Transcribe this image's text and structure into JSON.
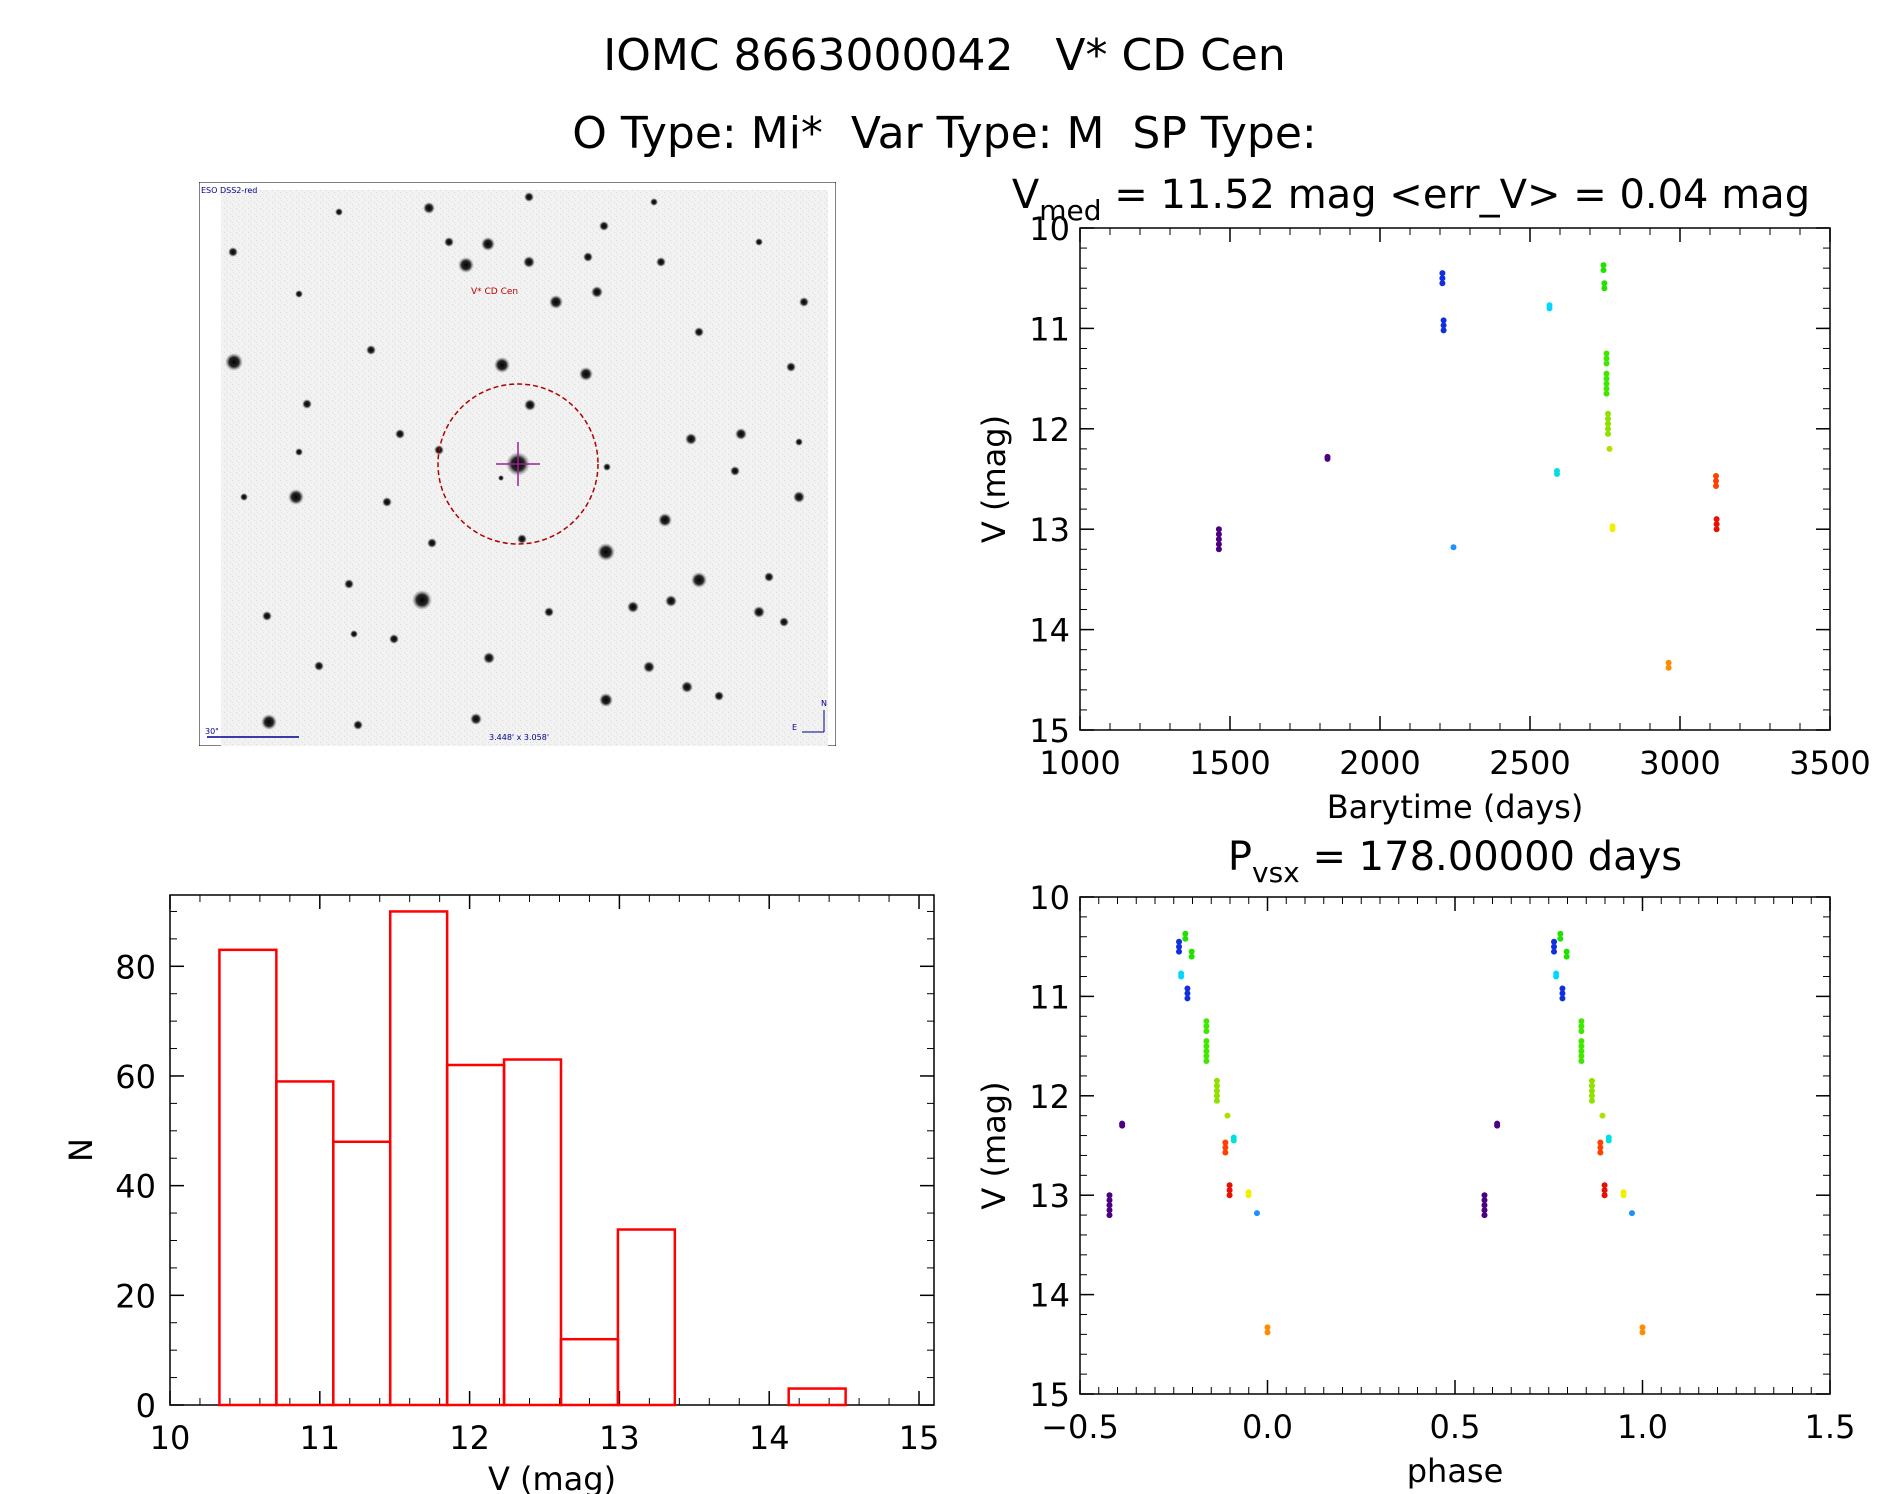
{
  "header": {
    "line1": "IOMC 8663000042   V* CD Cen",
    "line2": "O Type: Mi*  Var Type: M  SP Type:"
  },
  "finder": {
    "label_top_left": "ESO DSS2-red",
    "target_label": "V* CD Cen",
    "scale_label": "30\"",
    "fov_label": "3.448' x 3.058'",
    "compass_n": "N",
    "compass_e": "E"
  },
  "chart_data": [
    {
      "type": "scatter",
      "id": "lightcurve",
      "title_main": "V",
      "title_sub": "med",
      "title_rest": " = 11.52 mag <err_V> = 0.04 mag",
      "xlabel": "Barytime (days)",
      "ylabel": "V (mag)",
      "xlim": [
        1000,
        3500
      ],
      "ylim": [
        15,
        10
      ],
      "xticks": [
        "1000",
        "1500",
        "2000",
        "2500",
        "3000",
        "3500"
      ],
      "yticks": [
        "10",
        "11",
        "12",
        "13",
        "14",
        "15"
      ],
      "groups": [
        {
          "color": "#4b0082",
          "t": 1463,
          "v": [
            13.0,
            13.05,
            13.1,
            13.15,
            13.2
          ]
        },
        {
          "color": "#4b0082",
          "t": 1825,
          "v": [
            12.28,
            12.3
          ]
        },
        {
          "color": "#1030e0",
          "t": 2208,
          "v": [
            10.45,
            10.5,
            10.55
          ]
        },
        {
          "color": "#1030e0",
          "t": 2212,
          "v": [
            10.92,
            10.97,
            11.02
          ]
        },
        {
          "color": "#1e90ff",
          "t": 2245,
          "v": [
            13.18
          ]
        },
        {
          "color": "#00d8ff",
          "t": 2565,
          "v": [
            10.77,
            10.8
          ]
        },
        {
          "color": "#00e0e0",
          "t": 2590,
          "v": [
            12.42,
            12.45
          ]
        },
        {
          "color": "#22e000",
          "t": 2745,
          "v": [
            10.37,
            10.42
          ]
        },
        {
          "color": "#22e000",
          "t": 2748,
          "v": [
            10.55,
            10.6
          ]
        },
        {
          "color": "#40e800",
          "t": 2755,
          "v": [
            11.25,
            11.3,
            11.35,
            11.45,
            11.5,
            11.55,
            11.6,
            11.65
          ]
        },
        {
          "color": "#90e000",
          "t": 2760,
          "v": [
            11.85,
            11.9,
            11.95,
            12.0,
            12.05
          ]
        },
        {
          "color": "#b0e000",
          "t": 2765,
          "v": [
            12.2
          ]
        },
        {
          "color": "#f0f000",
          "t": 2775,
          "v": [
            12.97,
            13.0
          ]
        },
        {
          "color": "#ff8c00",
          "t": 2962,
          "v": [
            14.33,
            14.38
          ]
        },
        {
          "color": "#ff4000",
          "t": 3120,
          "v": [
            12.47,
            12.52,
            12.57
          ]
        },
        {
          "color": "#e81000",
          "t": 3122,
          "v": [
            12.9,
            12.95,
            13.0
          ]
        }
      ]
    },
    {
      "type": "bar",
      "id": "histogram",
      "xlabel": "V (mag)",
      "ylabel": "N",
      "xlim": [
        10,
        15.1
      ],
      "ylim": [
        0,
        93
      ],
      "xticks": [
        "10",
        "11",
        "12",
        "13",
        "14",
        "15"
      ],
      "yticks": [
        "0",
        "20",
        "40",
        "60",
        "80"
      ],
      "bar_color": "#ff0000",
      "bin_edges": [
        10.33,
        10.71,
        11.09,
        11.47,
        11.85,
        12.23,
        12.61,
        12.99,
        13.37,
        13.75,
        14.13,
        14.51
      ],
      "values": [
        83,
        59,
        48,
        90,
        62,
        63,
        12,
        32,
        0,
        0,
        3
      ]
    },
    {
      "type": "scatter",
      "id": "phased",
      "title_main": "P",
      "title_sub": "vsx",
      "title_rest": " = 178.00000 days",
      "xlabel": "phase",
      "ylabel": "V (mag)",
      "xlim": [
        -0.5,
        1.5
      ],
      "ylim": [
        15,
        10
      ],
      "xticks": [
        "−0.5",
        "0.0",
        "0.5",
        "1.0",
        "1.5"
      ],
      "yticks": [
        "10",
        "11",
        "12",
        "13",
        "14",
        "15"
      ],
      "period": 178.0,
      "epoch": 2962
    }
  ]
}
